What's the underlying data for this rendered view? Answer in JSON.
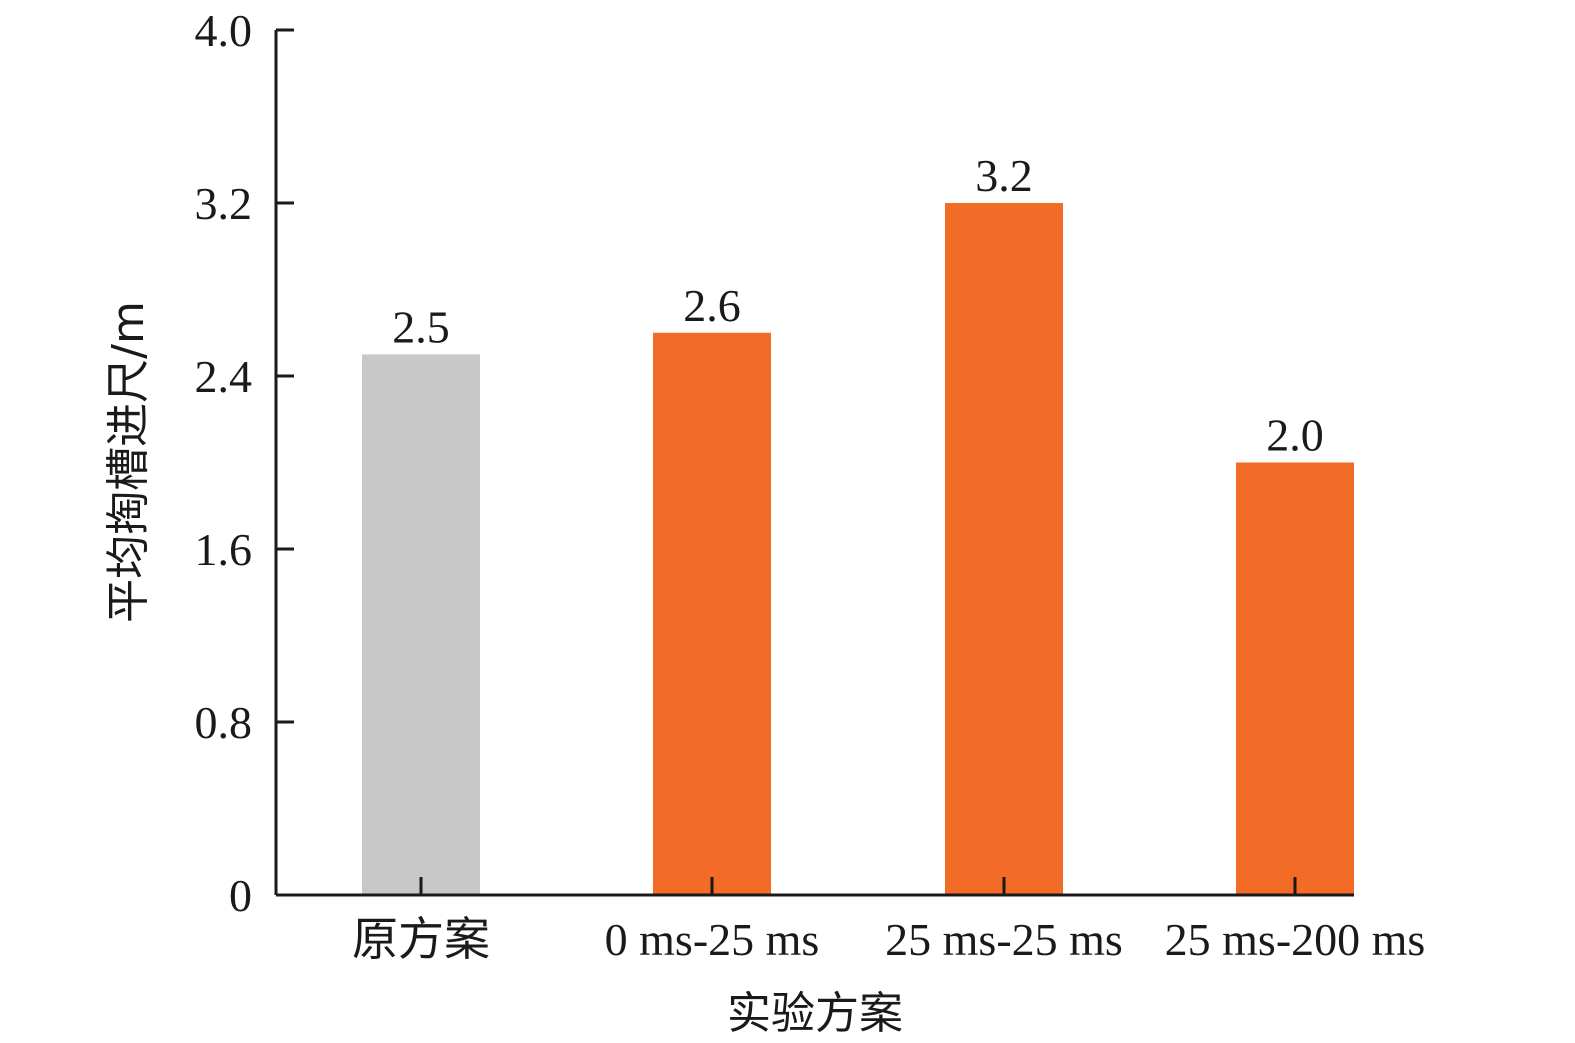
{
  "chart_data": {
    "type": "bar",
    "title": "",
    "xlabel": "实验方案",
    "ylabel": "平均掏槽进尺/m",
    "categories": [
      "原方案",
      "0 ms-25 ms",
      "25 ms-25 ms",
      "25 ms-200 ms"
    ],
    "values": [
      2.5,
      2.6,
      3.2,
      2.0
    ],
    "value_labels": [
      "2.5",
      "2.6",
      "3.2",
      "2.0"
    ],
    "bar_colors": [
      "#c8c8c8",
      "#f26b27",
      "#f26b27",
      "#f26b27"
    ],
    "ylim": [
      0,
      4.0
    ],
    "yticks": [
      0,
      0.8,
      1.6,
      2.4,
      3.2,
      4.0
    ],
    "ytick_labels": [
      "0",
      "0.8",
      "1.6",
      "2.4",
      "3.2",
      "4.0"
    ],
    "grid": false,
    "legend": "none"
  }
}
